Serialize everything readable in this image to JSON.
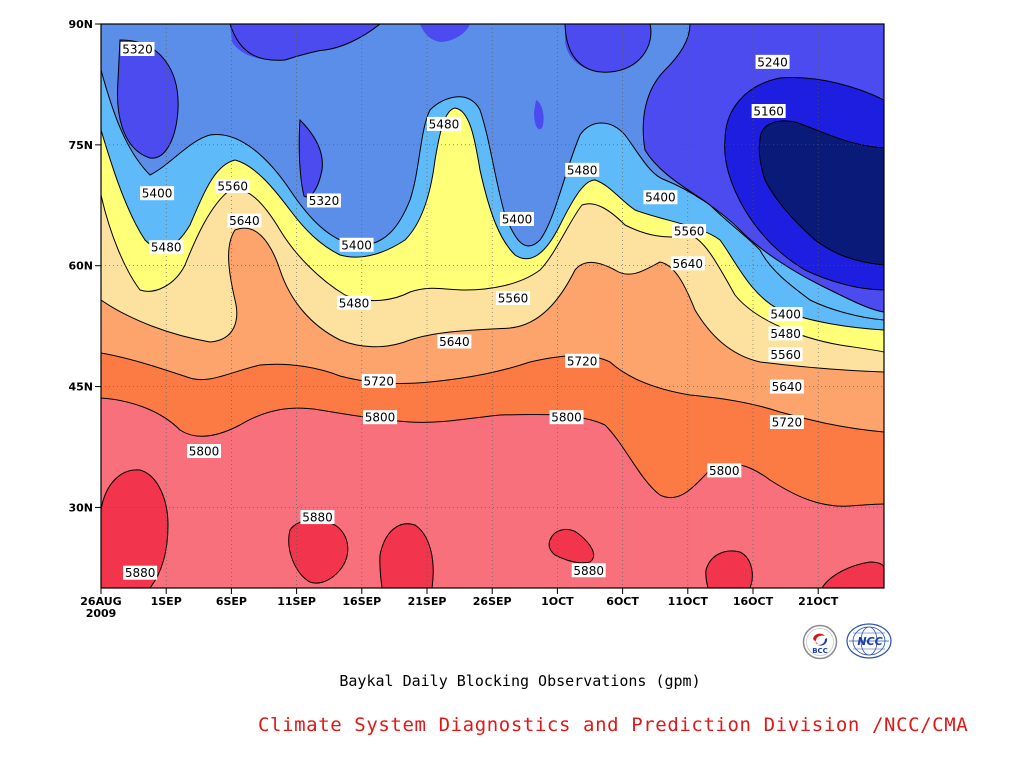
{
  "chart_data": {
    "type": "contour",
    "title": "Baykal Daily Blocking Observations (gpm)",
    "x_tick_labels": [
      "26AUG\n2009",
      "1SEP",
      "6SEP",
      "11SEP",
      "16SEP",
      "21SEP",
      "26SEP",
      "1OCT",
      "6OCT",
      "11OCT",
      "16OCT",
      "21OCT"
    ],
    "x_range_days": [
      0,
      59
    ],
    "y_tick_labels": [
      "30N",
      "45N",
      "60N",
      "75N",
      "90N"
    ],
    "y_ticks": [
      30,
      45,
      60,
      75,
      90
    ],
    "y_range": [
      20,
      90
    ],
    "levels": [
      5160,
      5240,
      5320,
      5400,
      5480,
      5560,
      5640,
      5720,
      5800,
      5880
    ],
    "fill_colors": {
      "below_5160": "#0a1a78",
      "5160_5240": "#1e1ee0",
      "5240_5320": "#4b4bef",
      "5320_5400": "#5a8ee8",
      "5400_5480": "#5ebaf8",
      "5480_5560": "#ffff78",
      "5560_5640": "#fce29e",
      "5640_5720": "#fca46c",
      "5720_5800": "#fc7a44",
      "5800_5880": "#f8707c",
      "above_5880": "#f2344c"
    },
    "contour_labels": [
      {
        "value": "5320",
        "day": 2.8,
        "lat": 86.9
      },
      {
        "value": "5400",
        "day": 4.3,
        "lat": 69.0
      },
      {
        "value": "5480",
        "day": 5.0,
        "lat": 62.3
      },
      {
        "value": "5560",
        "day": 10.1,
        "lat": 69.9
      },
      {
        "value": "5640",
        "day": 11.0,
        "lat": 65.6
      },
      {
        "value": "5320",
        "day": 17.1,
        "lat": 68.1
      },
      {
        "value": "5400",
        "day": 19.6,
        "lat": 62.6
      },
      {
        "value": "5480",
        "day": 19.4,
        "lat": 55.4
      },
      {
        "value": "5480",
        "day": 26.3,
        "lat": 77.6
      },
      {
        "value": "5400",
        "day": 31.9,
        "lat": 65.8
      },
      {
        "value": "5560",
        "day": 31.6,
        "lat": 56.0
      },
      {
        "value": "5640",
        "day": 27.1,
        "lat": 50.6
      },
      {
        "value": "5720",
        "day": 21.3,
        "lat": 45.7
      },
      {
        "value": "5800",
        "day": 21.4,
        "lat": 41.2
      },
      {
        "value": "5800",
        "day": 7.9,
        "lat": 37.0
      },
      {
        "value": "5880",
        "day": 16.6,
        "lat": 28.8
      },
      {
        "value": "5880",
        "day": 3.0,
        "lat": 21.9
      },
      {
        "value": "5480",
        "day": 36.9,
        "lat": 71.9
      },
      {
        "value": "5720",
        "day": 36.9,
        "lat": 48.2
      },
      {
        "value": "5800",
        "day": 35.7,
        "lat": 41.2
      },
      {
        "value": "5880",
        "day": 37.4,
        "lat": 22.2
      },
      {
        "value": "5400",
        "day": 42.9,
        "lat": 68.5
      },
      {
        "value": "5560",
        "day": 45.1,
        "lat": 64.3
      },
      {
        "value": "5640",
        "day": 45.0,
        "lat": 60.3
      },
      {
        "value": "5800",
        "day": 47.8,
        "lat": 34.6
      },
      {
        "value": "5240",
        "day": 51.5,
        "lat": 85.3
      },
      {
        "value": "5160",
        "day": 51.2,
        "lat": 79.2
      },
      {
        "value": "5400",
        "day": 52.5,
        "lat": 54.0
      },
      {
        "value": "5480",
        "day": 52.5,
        "lat": 51.6
      },
      {
        "value": "5560",
        "day": 52.5,
        "lat": 49.0
      },
      {
        "value": "5640",
        "day": 52.6,
        "lat": 45.0
      },
      {
        "value": "5720",
        "day": 52.6,
        "lat": 40.6
      }
    ]
  },
  "caption": "Baykal Daily Blocking Observations (gpm)",
  "credit": "Climate System Diagnostics and Prediction Division /NCC/CMA",
  "logos": [
    {
      "icon": "bcc-logo-icon",
      "text": "BCC"
    },
    {
      "icon": "ncc-logo-icon",
      "text": "NCC"
    }
  ]
}
